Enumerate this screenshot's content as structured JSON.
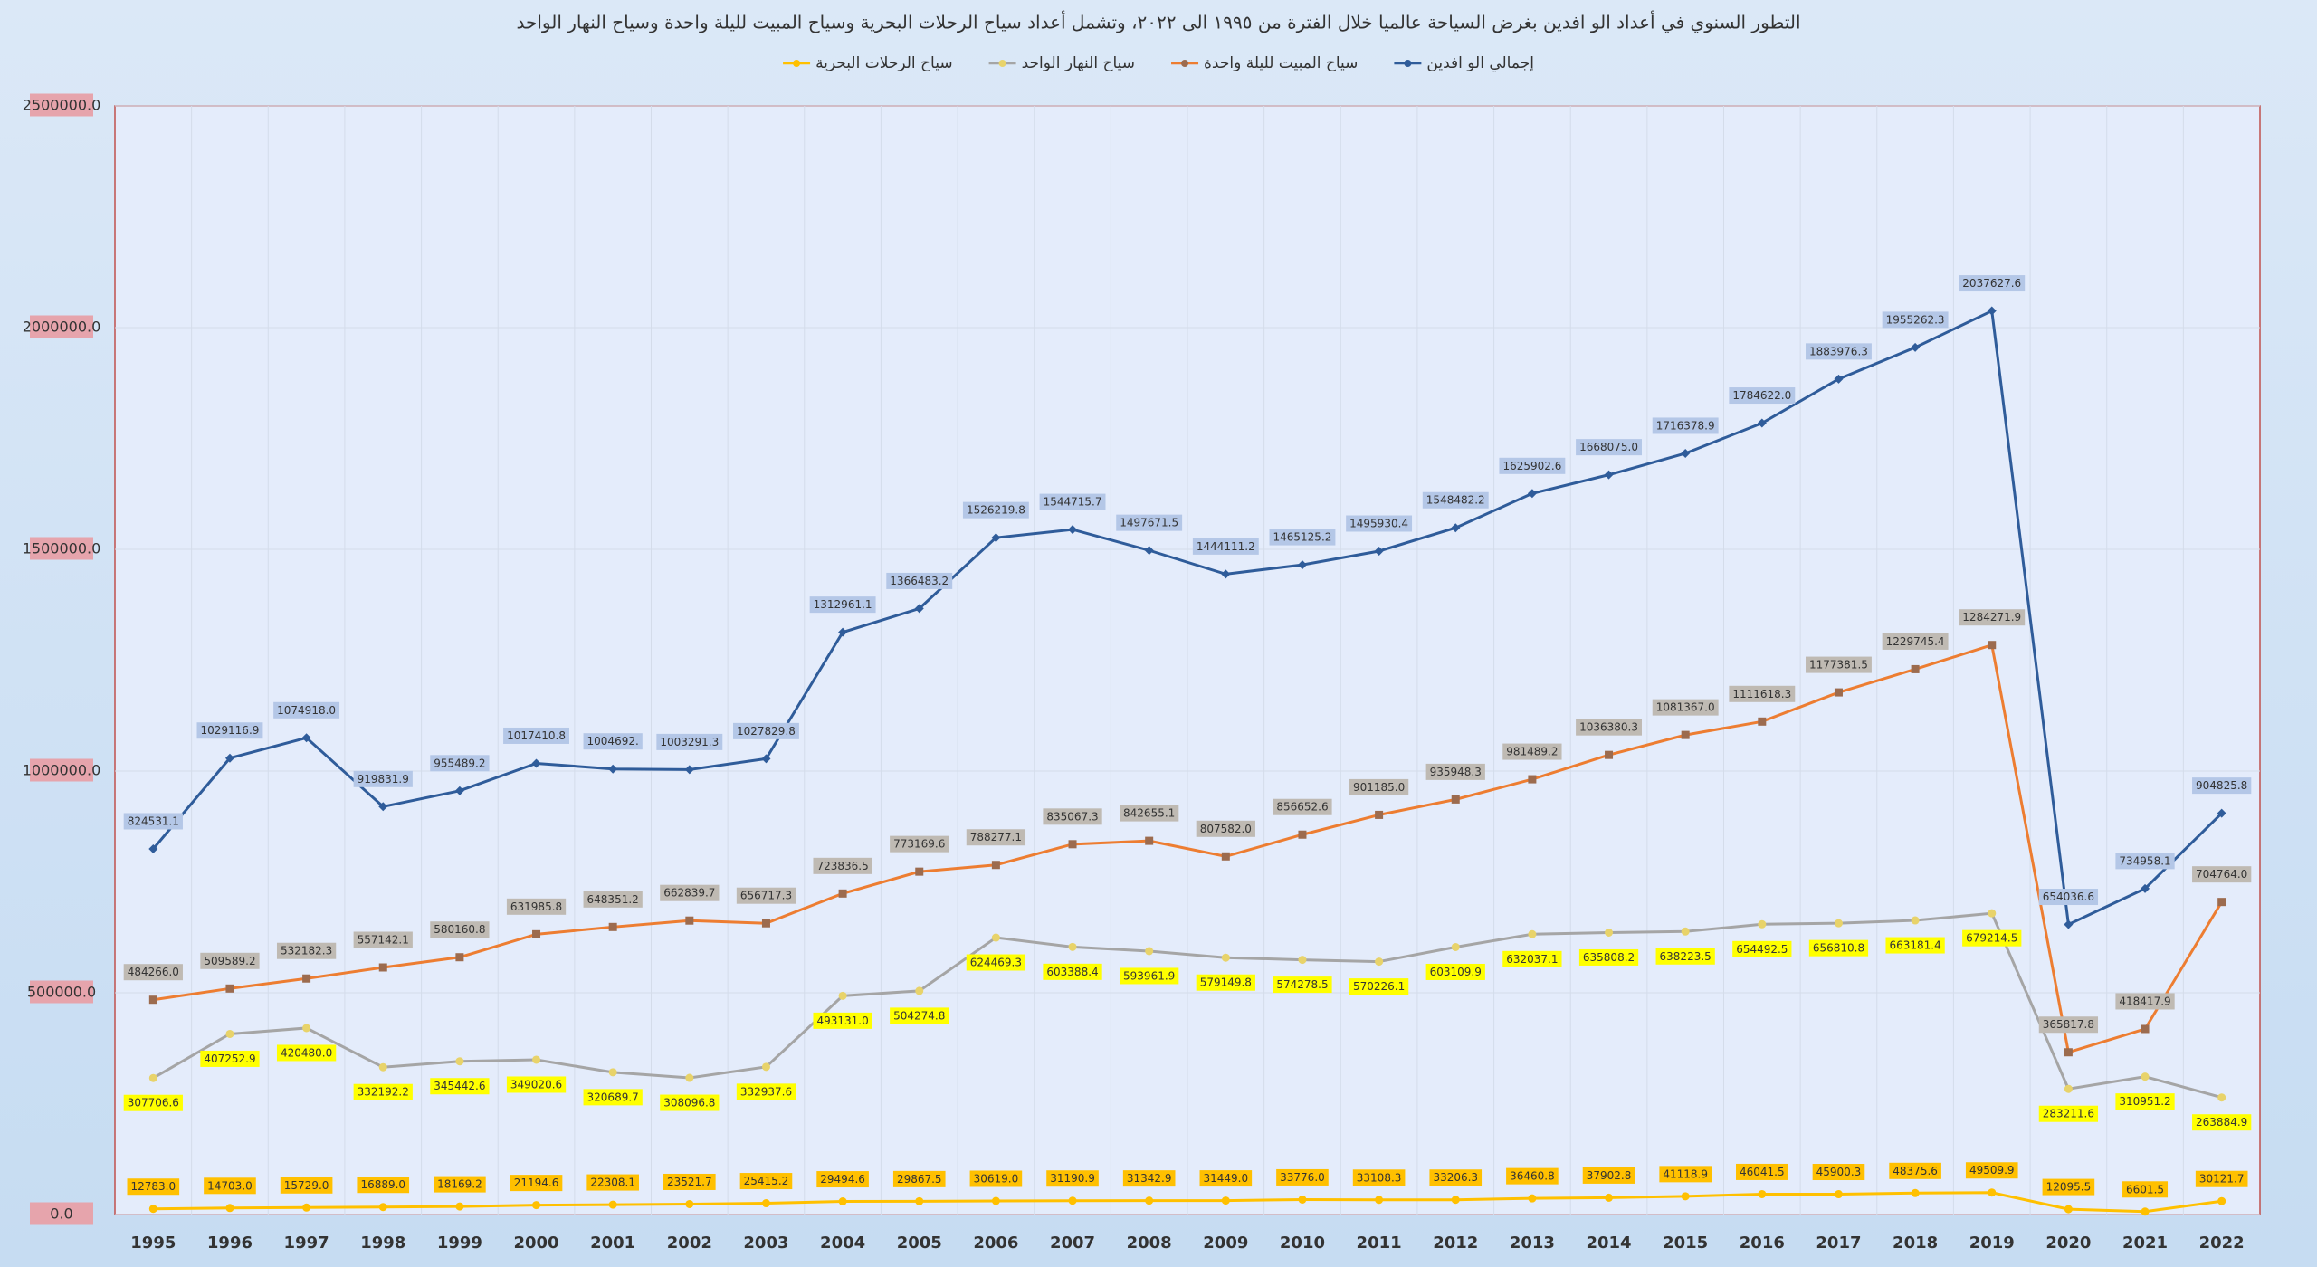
{
  "chart_data": {
    "type": "line",
    "title": "التطور السنوي في أعداد الو افدين بغرض السياحة عالميا خلال الفترة من ١٩٩٥ الى ٢٠٢٢، وتشمل أعداد سياح الرحلات البحرية وسياح المبيت لليلة واحدة وسياح النهار الواحد",
    "categories": [
      "1995",
      "1996",
      "1997",
      "1998",
      "1999",
      "2000",
      "2001",
      "2002",
      "2003",
      "2004",
      "2005",
      "2006",
      "2007",
      "2008",
      "2009",
      "2010",
      "2011",
      "2012",
      "2013",
      "2014",
      "2015",
      "2016",
      "2017",
      "2018",
      "2019",
      "2020",
      "2021",
      "2022"
    ],
    "ylim": [
      0,
      2500000
    ],
    "yticks": [
      {
        "value": 0,
        "label": "0.0"
      },
      {
        "value": 500000,
        "label": "500000.0"
      },
      {
        "value": 1000000,
        "label": "1000000.0"
      },
      {
        "value": 1500000,
        "label": "1500000.0"
      },
      {
        "value": 2000000,
        "label": "2000000.0"
      },
      {
        "value": 2500000,
        "label": "2500000.0"
      }
    ],
    "grid": true,
    "legend": "top",
    "series": [
      {
        "name": "إجمالي الو افدين",
        "color": "#2f5c9a",
        "marker_color": "#2f5c9a",
        "label_color": "#b4c7e7",
        "values": [
          824531.1,
          1029116.9,
          1074918.0,
          919831.9,
          955489.2,
          1017410.8,
          1004692.0,
          1003291.3,
          1027829.8,
          1312961.1,
          1366483.2,
          1526219.8,
          1544715.7,
          1497671.5,
          1444111.2,
          1465125.2,
          1495930.4,
          1548482.2,
          1625902.6,
          1668075.0,
          1716378.9,
          1784622.0,
          1883976.3,
          1955262.3,
          2037627.6,
          654036.6,
          734958.1,
          904825.8
        ],
        "value_labels": [
          "824531.1",
          "1029116.9",
          "1074918.0",
          "919831.9",
          "955489.2",
          "1017410.8",
          "1004692.",
          "1003291.3",
          "1027829.8",
          "1312961.1",
          "1366483.2",
          "1526219.8",
          "1544715.7",
          "1497671.5",
          "1444111.2",
          "1465125.2",
          "1495930.4",
          "1548482.2",
          "1625902.6",
          "1668075.0",
          "1716378.9",
          "1784622.0",
          "1883976.3",
          "1955262.3",
          "2037627.6",
          "654036.6",
          "734958.1",
          "904825.8"
        ]
      },
      {
        "name": "سياح المبيت لليلة واحدة",
        "color": "#ed7d31",
        "marker_color": "#9c6b4e",
        "label_color": "#bfbab3",
        "values": [
          484266.0,
          509589.2,
          532182.3,
          557142.1,
          580160.8,
          631985.8,
          648351.2,
          662839.7,
          656717.3,
          723836.5,
          773169.6,
          788277.1,
          835067.3,
          842655.1,
          807582.0,
          856652.6,
          901185.0,
          935948.3,
          981489.2,
          1036380.3,
          1081367.0,
          1111618.3,
          1177381.5,
          1229745.4,
          1284271.9,
          365817.8,
          418417.9,
          704764.0
        ],
        "value_labels": [
          "484266.0",
          "509589.2",
          "532182.3",
          "557142.1",
          "580160.8",
          "631985.8",
          "648351.2",
          "662839.7",
          "656717.3",
          "723836.5",
          "773169.6",
          "788277.1",
          "835067.3",
          "842655.1",
          "807582.0",
          "856652.6",
          "901185.0",
          "935948.3",
          "981489.2",
          "1036380.3",
          "1081367.0",
          "1111618.3",
          "1177381.5",
          "1229745.4",
          "1284271.9",
          "365817.8",
          "418417.9",
          "704764.0"
        ]
      },
      {
        "name": "سياح النهار الواحد",
        "color": "#a5a5a5",
        "marker_color": "#e8d36a",
        "label_color": "#ffff00",
        "values": [
          307706.6,
          407252.9,
          420480.0,
          332192.2,
          345442.6,
          349020.6,
          320689.7,
          308096.8,
          332937.6,
          493131.0,
          504274.8,
          624469.3,
          603388.4,
          593961.9,
          579149.8,
          574278.5,
          570226.1,
          603109.9,
          632037.1,
          635808.2,
          638223.5,
          654492.5,
          656810.8,
          663181.4,
          679214.5,
          283211.6,
          310951.2,
          263884.9
        ],
        "value_labels": [
          "307706.6",
          "407252.9",
          "420480.0",
          "332192.2",
          "345442.6",
          "349020.6",
          "320689.7",
          "308096.8",
          "332937.6",
          "493131.0",
          "504274.8",
          "624469.3",
          "603388.4",
          "593961.9",
          "579149.8",
          "574278.5",
          "570226.1",
          "603109.9",
          "632037.1",
          "635808.2",
          "638223.5",
          "654492.5",
          "656810.8",
          "663181.4",
          "679214.5",
          "283211.6",
          "310951.2",
          "263884.9"
        ]
      },
      {
        "name": "سياح الرحلات البحرية",
        "color": "#ffc000",
        "marker_color": "#ffc000",
        "label_color": "#ffc000",
        "values": [
          12783.0,
          14703.0,
          15729.0,
          16889.0,
          18169.2,
          21194.6,
          22308.1,
          23521.7,
          25415.2,
          29494.6,
          29867.5,
          30619.0,
          31190.9,
          31342.9,
          31449.0,
          33776.0,
          33108.3,
          33206.3,
          36460.8,
          37902.8,
          41118.9,
          46041.5,
          45900.3,
          48375.6,
          49509.9,
          12095.5,
          6601.5,
          30121.7
        ],
        "value_labels": [
          "12783.0",
          "14703.0",
          "15729.0",
          "16889.0",
          "18169.2",
          "21194.6",
          "22308.1",
          "23521.7",
          "25415.2",
          "29494.6",
          "29867.5",
          "30619.0",
          "31190.9",
          "31342.9",
          "31449.0",
          "33776.0",
          "33108.3",
          "33206.3",
          "36460.8",
          "37902.8",
          "41118.9",
          "46041.5",
          "45900.3",
          "48375.6",
          "49509.9",
          "12095.5",
          "6601.5",
          "30121.7"
        ]
      }
    ]
  }
}
